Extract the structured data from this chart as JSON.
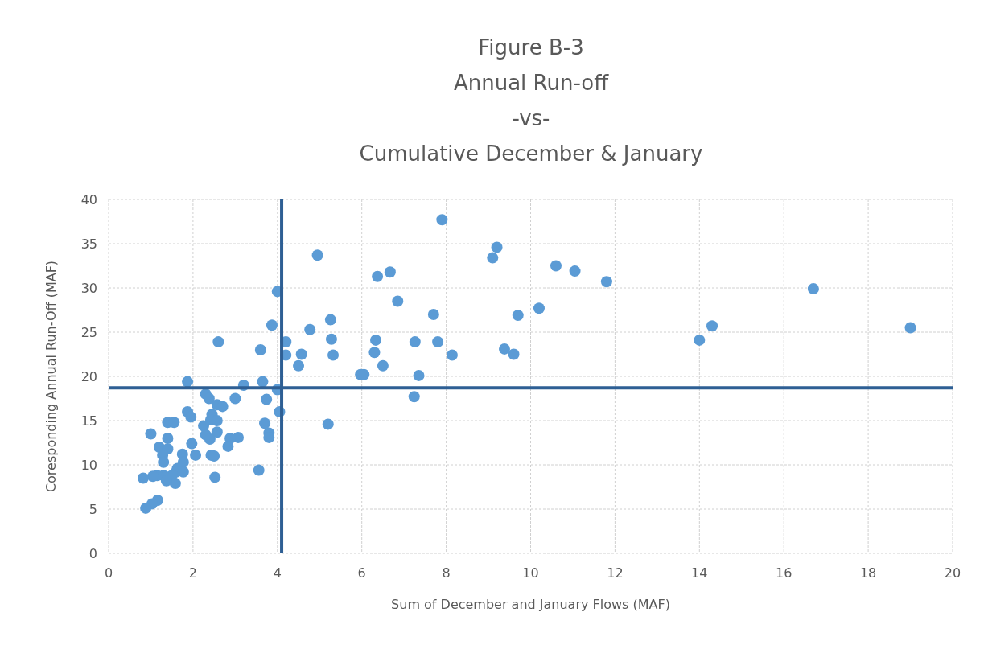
{
  "chart_data": {
    "type": "scatter",
    "title": "Figure B-3\nAnnual Run-off\n-vs-\nCumulative December & January",
    "xlabel": "Sum of December and January Flows (MAF)",
    "ylabel": "Coresponding Annual Run-Off (MAF)",
    "xlim": [
      0,
      20
    ],
    "ylim": [
      0,
      40
    ],
    "xticks": [
      0,
      2,
      4,
      6,
      8,
      10,
      12,
      14,
      16,
      18,
      20
    ],
    "yticks": [
      0,
      5,
      10,
      15,
      20,
      25,
      30,
      35,
      40
    ],
    "grid": true,
    "marker": "circle",
    "ref_lines": [
      {
        "axis": "x",
        "value": 4.1,
        "color": "#2e5f94"
      },
      {
        "axis": "y",
        "value": 18.7,
        "color": "#2e5f94"
      }
    ],
    "series": [
      {
        "color": "#5b9bd5",
        "x": [
          7.9,
          9.2,
          9.1,
          4.95,
          10.6,
          11.05,
          11.8,
          16.7,
          4.0,
          6.67,
          6.37,
          6.85,
          7.7,
          9.7,
          10.2,
          5.26,
          4.77,
          3.87,
          19.0,
          14.3,
          14.0,
          5.28,
          6.33,
          7.8,
          7.26,
          4.2,
          2.6,
          3.6,
          9.38,
          9.6,
          8.14,
          6.3,
          5.32,
          4.2,
          4.57,
          4.5,
          6.5,
          5.97,
          6.05,
          7.35,
          1.87,
          3.65,
          3.2,
          4.0,
          7.24,
          3.74,
          3.0,
          2.3,
          2.38,
          2.57,
          2.7,
          4.05,
          1.87,
          1.95,
          2.45,
          2.42,
          2.57,
          1.4,
          1.55,
          3.7,
          5.2,
          2.25,
          2.3,
          2.57,
          3.8,
          3.8,
          1.0,
          1.4,
          2.4,
          3.07,
          2.88,
          2.83,
          1.97,
          1.2,
          1.4,
          1.28,
          2.06,
          1.75,
          2.43,
          2.5,
          1.3,
          1.63,
          1.77,
          1.6,
          1.77,
          1.5,
          1.3,
          1.15,
          1.05,
          0.82,
          2.52,
          3.56,
          1.58,
          1.37,
          1.16,
          1.03,
          0.88
        ],
        "values": [
          37.7,
          34.6,
          33.4,
          33.7,
          32.5,
          31.9,
          30.7,
          29.9,
          29.6,
          31.8,
          31.3,
          28.5,
          27.0,
          26.9,
          27.7,
          26.4,
          25.3,
          25.8,
          25.5,
          25.7,
          24.1,
          24.2,
          24.1,
          23.9,
          23.9,
          23.9,
          23.9,
          23.0,
          23.1,
          22.5,
          22.4,
          22.7,
          22.4,
          22.4,
          22.5,
          21.2,
          21.2,
          20.2,
          20.2,
          20.1,
          19.4,
          19.4,
          19.0,
          18.5,
          17.7,
          17.4,
          17.5,
          18.0,
          17.5,
          16.8,
          16.6,
          16.0,
          16.0,
          15.4,
          15.7,
          15.1,
          15.0,
          14.8,
          14.8,
          14.7,
          14.6,
          14.4,
          13.4,
          13.7,
          13.6,
          13.1,
          13.5,
          13.0,
          12.9,
          13.1,
          13.0,
          12.1,
          12.4,
          12.0,
          11.8,
          11.1,
          11.1,
          11.2,
          11.1,
          11.0,
          10.3,
          9.6,
          10.3,
          9.2,
          9.2,
          8.8,
          8.8,
          8.8,
          8.7,
          8.5,
          8.6,
          9.4,
          7.9,
          8.2,
          6.0,
          5.6,
          5.1
        ]
      }
    ]
  }
}
